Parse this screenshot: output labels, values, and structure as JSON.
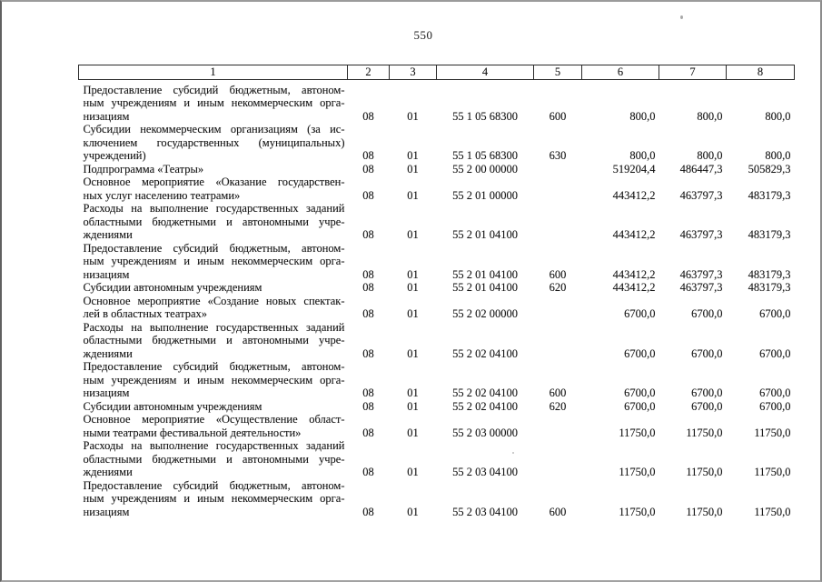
{
  "page": {
    "number": "550"
  },
  "table": {
    "columns": [
      "1",
      "2",
      "3",
      "4",
      "5",
      "6",
      "7",
      "8"
    ],
    "rows": [
      {
        "lines": [
          "Предоставление субсидий бюджетным, автоном-",
          "ным учреждениям и иным некоммерческим орга-",
          "низациям"
        ],
        "c2": "08",
        "c3": "01",
        "c4": "55 1 05 68300",
        "c5": "600",
        "c6": "800,0",
        "c7": "800,0",
        "c8": "800,0"
      },
      {
        "lines": [
          "Субсидии некоммерческим организациям (за ис-",
          "ключением государственных (муниципальных)",
          "учреждений)"
        ],
        "c2": "08",
        "c3": "01",
        "c4": "55 1 05 68300",
        "c5": "630",
        "c6": "800,0",
        "c7": "800,0",
        "c8": "800,0"
      },
      {
        "lines": [
          "Подпрограмма «Театры»"
        ],
        "c2": "08",
        "c3": "01",
        "c4": "55 2 00 00000",
        "c5": "",
        "c6": "519204,4",
        "c7": "486447,3",
        "c8": "505829,3"
      },
      {
        "lines": [
          "Основное мероприятие «Оказание государствен-",
          "ных услуг населению театрами»"
        ],
        "c2": "08",
        "c3": "01",
        "c4": "55 2 01 00000",
        "c5": "",
        "c6": "443412,2",
        "c7": "463797,3",
        "c8": "483179,3"
      },
      {
        "lines": [
          "Расходы на выполнение государственных заданий",
          "областными бюджетными и автономными учре-",
          "ждениями"
        ],
        "c2": "08",
        "c3": "01",
        "c4": "55 2 01 04100",
        "c5": "",
        "c6": "443412,2",
        "c7": "463797,3",
        "c8": "483179,3"
      },
      {
        "lines": [
          "Предоставление субсидий бюджетным, автоном-",
          "ным учреждениям и иным некоммерческим орга-",
          "низациям"
        ],
        "c2": "08",
        "c3": "01",
        "c4": "55 2 01 04100",
        "c5": "600",
        "c6": "443412,2",
        "c7": "463797,3",
        "c8": "483179,3"
      },
      {
        "lines": [
          "Субсидии автономным учреждениям"
        ],
        "c2": "08",
        "c3": "01",
        "c4": "55 2 01 04100",
        "c5": "620",
        "c6": "443412,2",
        "c7": "463797,3",
        "c8": "483179,3"
      },
      {
        "lines": [
          "Основное мероприятие «Создание новых спектак-",
          "лей в областных театрах»"
        ],
        "c2": "08",
        "c3": "01",
        "c4": "55 2 02 00000",
        "c5": "",
        "c6": "6700,0",
        "c7": "6700,0",
        "c8": "6700,0"
      },
      {
        "lines": [
          "Расходы на выполнение государственных заданий",
          "областными бюджетными и автономными учре-",
          "ждениями"
        ],
        "c2": "08",
        "c3": "01",
        "c4": "55 2 02 04100",
        "c5": "",
        "c6": "6700,0",
        "c7": "6700,0",
        "c8": "6700,0"
      },
      {
        "lines": [
          "Предоставление субсидий бюджетным, автоном-",
          "ным учреждениям и иным некоммерческим орга-",
          "низациям"
        ],
        "c2": "08",
        "c3": "01",
        "c4": "55 2 02 04100",
        "c5": "600",
        "c6": "6700,0",
        "c7": "6700,0",
        "c8": "6700,0"
      },
      {
        "lines": [
          "Субсидии автономным учреждениям"
        ],
        "c2": "08",
        "c3": "01",
        "c4": "55 2 02 04100",
        "c5": "620",
        "c6": "6700,0",
        "c7": "6700,0",
        "c8": "6700,0"
      },
      {
        "lines": [
          "Основное мероприятие «Осуществление област-",
          "ными театрами фестивальной деятельности»"
        ],
        "c2": "08",
        "c3": "01",
        "c4": "55 2 03 00000",
        "c5": "",
        "c6": "11750,0",
        "c7": "11750,0",
        "c8": "11750,0"
      },
      {
        "lines": [
          "Расходы на выполнение государственных заданий",
          "областными бюджетными и автономными учре-",
          "ждениями"
        ],
        "c2": "08",
        "c3": "01",
        "c4": "55 2 03 04100",
        "c5": "",
        "c6": "11750,0",
        "c7": "11750,0",
        "c8": "11750,0"
      },
      {
        "lines": [
          "Предоставление субсидий бюджетным, автоном-",
          "ным учреждениям и иным некоммерческим орга-",
          "низациям"
        ],
        "c2": "08",
        "c3": "01",
        "c4": "55 2 03 04100",
        "c5": "600",
        "c6": "11750,0",
        "c7": "11750,0",
        "c8": "11750,0"
      }
    ]
  }
}
